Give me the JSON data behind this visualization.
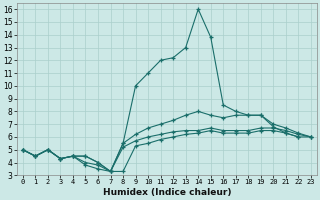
{
  "x": [
    0,
    1,
    2,
    3,
    4,
    5,
    6,
    7,
    8,
    9,
    10,
    11,
    12,
    13,
    14,
    15,
    16,
    17,
    18,
    19,
    20,
    21,
    22,
    23
  ],
  "line_min": [
    5.0,
    4.5,
    5.0,
    4.3,
    4.5,
    3.8,
    3.5,
    3.3,
    3.3,
    5.3,
    5.5,
    5.8,
    6.0,
    6.2,
    6.3,
    6.5,
    6.3,
    6.3,
    6.3,
    6.5,
    6.5,
    6.3,
    6.0,
    6.0
  ],
  "line_low": [
    5.0,
    4.5,
    5.0,
    4.3,
    4.5,
    4.0,
    3.8,
    3.3,
    5.2,
    5.7,
    6.0,
    6.2,
    6.4,
    6.5,
    6.5,
    6.7,
    6.5,
    6.5,
    6.5,
    6.7,
    6.7,
    6.5,
    6.2,
    6.0
  ],
  "line_mid": [
    5.0,
    4.5,
    5.0,
    4.3,
    4.5,
    4.5,
    4.0,
    3.3,
    5.5,
    6.2,
    6.7,
    7.0,
    7.3,
    7.7,
    8.0,
    7.7,
    7.5,
    7.7,
    7.7,
    7.7,
    7.0,
    6.7,
    6.3,
    6.0
  ],
  "line_high": [
    5.0,
    4.5,
    5.0,
    4.3,
    4.5,
    4.5,
    4.0,
    3.3,
    5.5,
    10.0,
    11.0,
    12.0,
    12.2,
    13.0,
    16.0,
    13.8,
    8.5,
    8.0,
    7.7,
    7.7,
    6.8,
    6.3,
    6.0,
    null
  ],
  "color": "#1a6e6a",
  "bg_color": "#cce8e6",
  "grid_color": "#aacfcc",
  "xlabel": "Humidex (Indice chaleur)",
  "xlim": [
    -0.5,
    23.5
  ],
  "ylim": [
    3,
    16.5
  ],
  "yticks": [
    3,
    4,
    5,
    6,
    7,
    8,
    9,
    10,
    11,
    12,
    13,
    14,
    15,
    16
  ],
  "xticks": [
    0,
    1,
    2,
    3,
    4,
    5,
    6,
    7,
    8,
    9,
    10,
    11,
    12,
    13,
    14,
    15,
    16,
    17,
    18,
    19,
    20,
    21,
    22,
    23
  ]
}
